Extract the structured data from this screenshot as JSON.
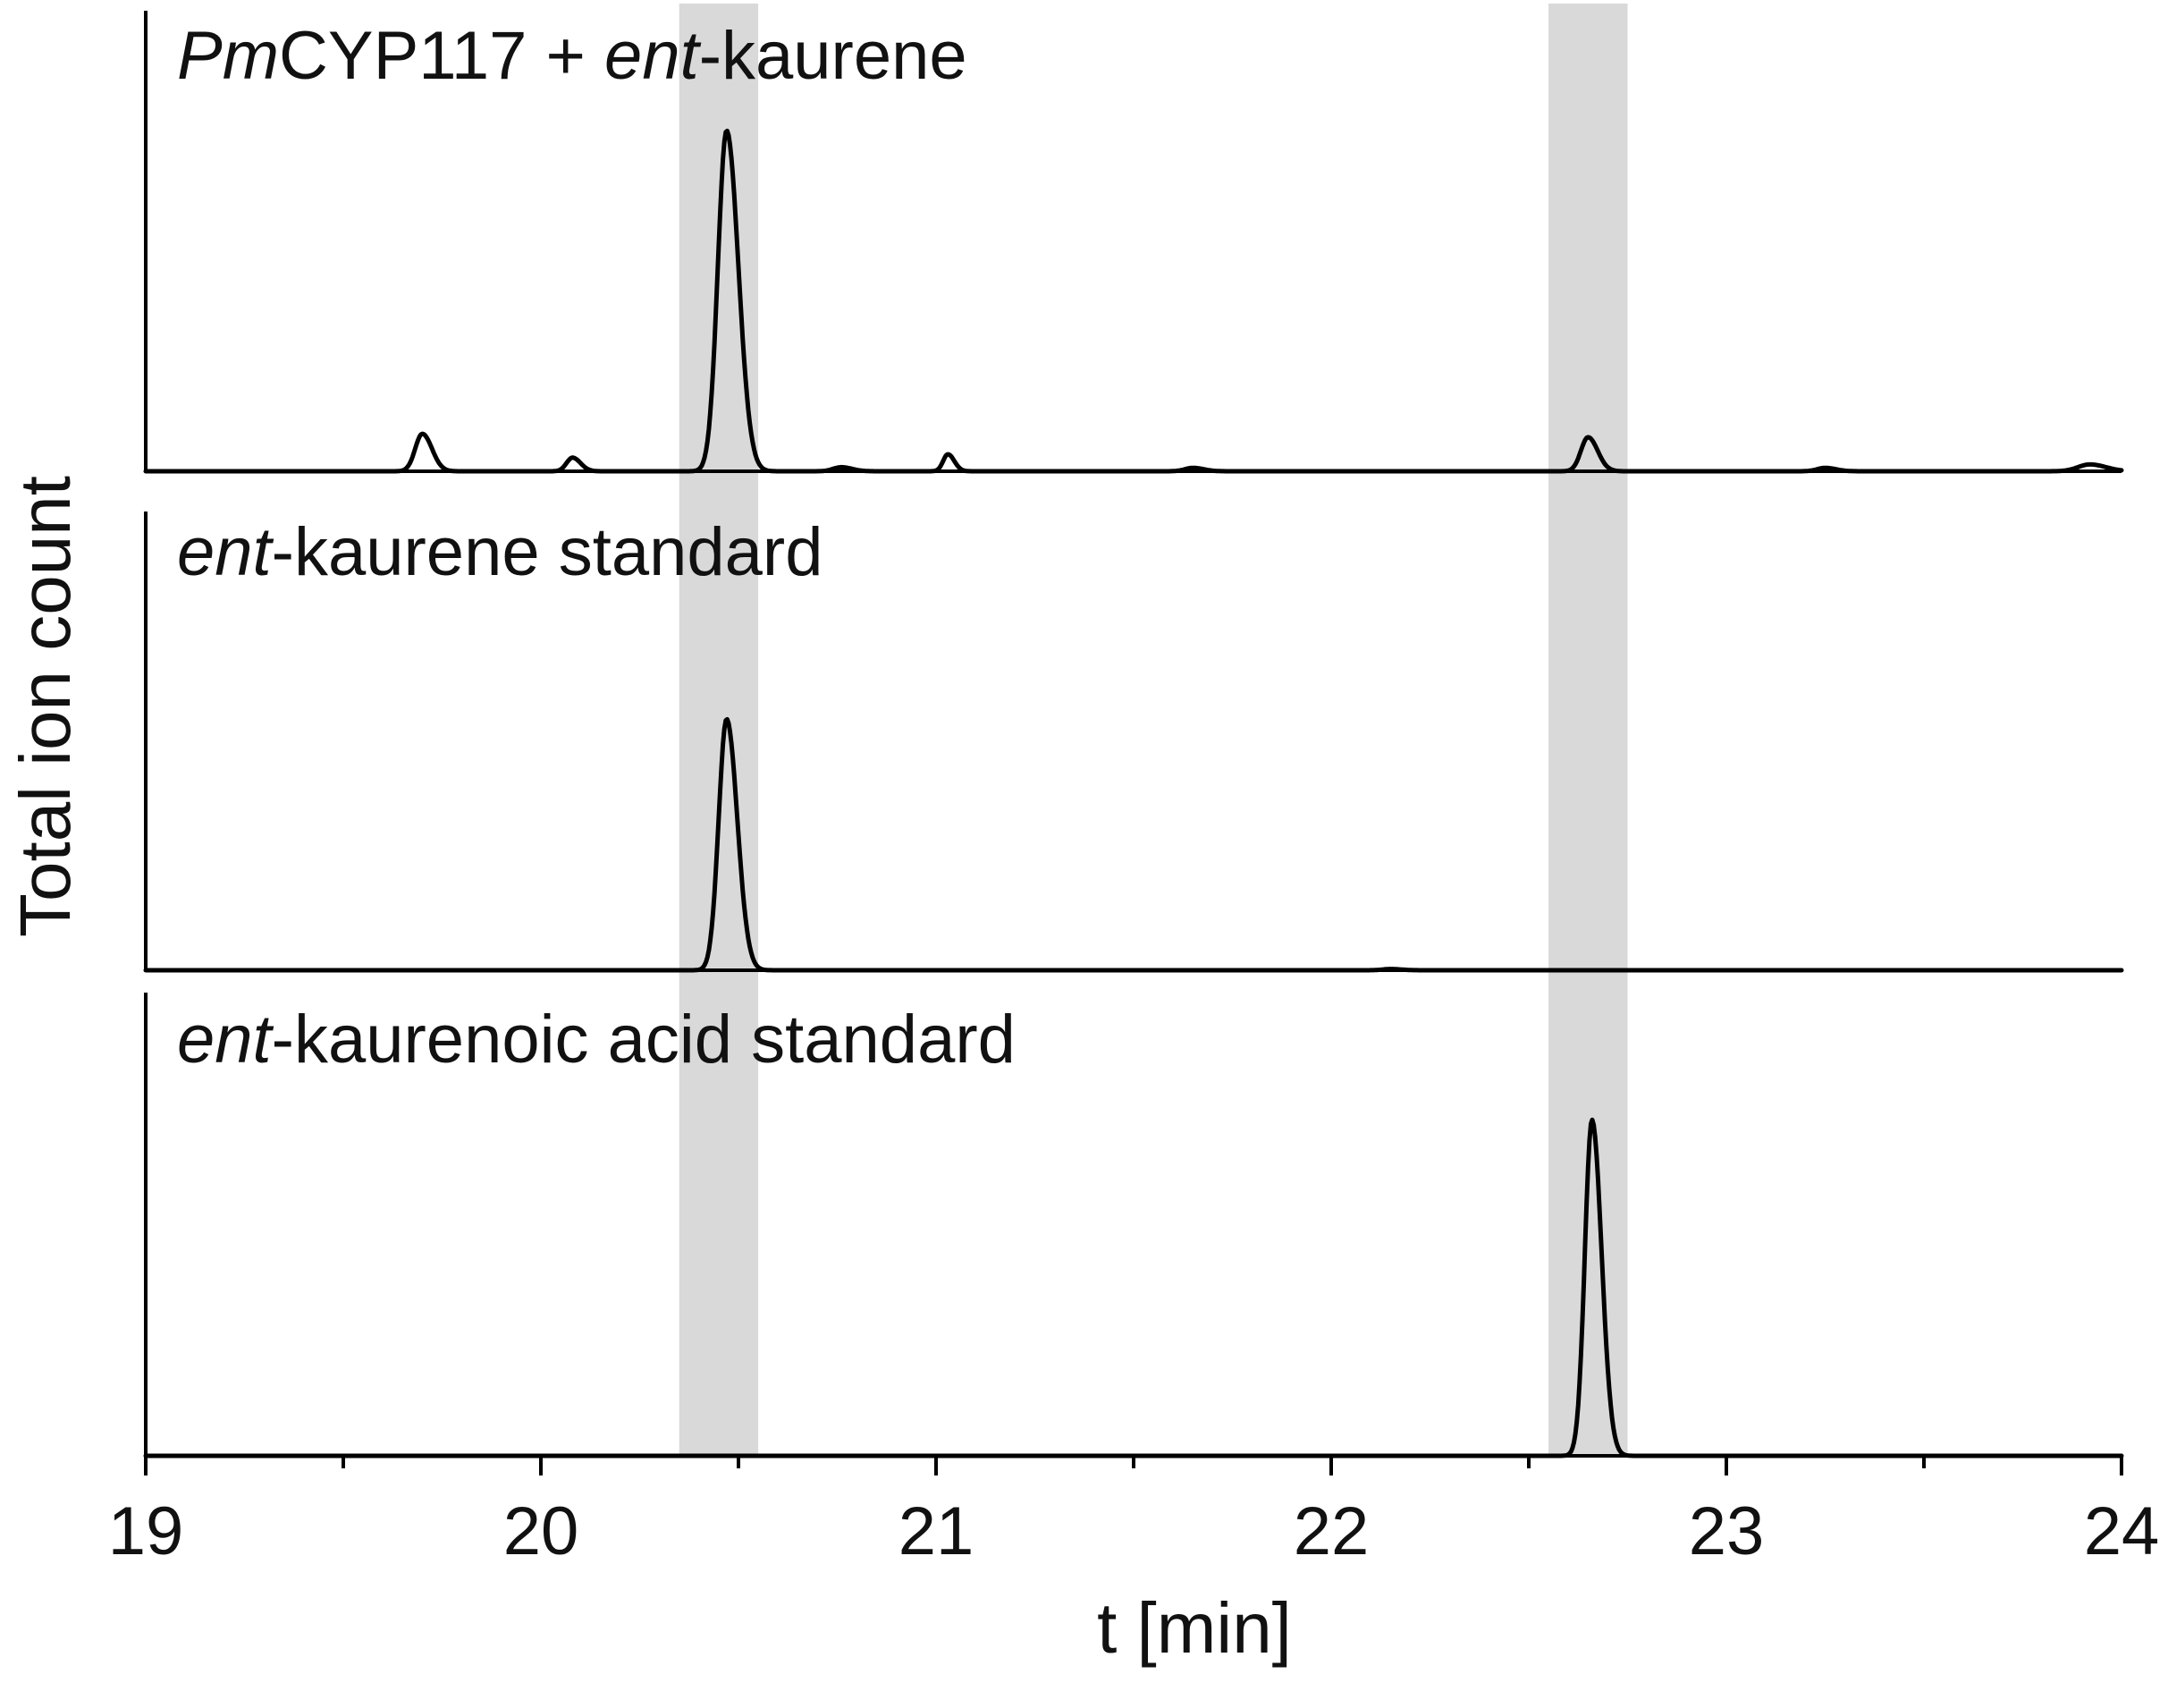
{
  "chart_data": {
    "type": "line",
    "xlabel": "t [min]",
    "ylabel": "Total ion count",
    "xlim": [
      19,
      24
    ],
    "x_major_ticks": [
      19,
      20,
      21,
      22,
      23,
      24
    ],
    "x_minor_ticks": [
      19.5,
      20.5,
      21.5,
      22.5,
      23.5
    ],
    "ylim": [
      0,
      1
    ],
    "grid": false,
    "highlight_bands": [
      {
        "x_start": 20.35,
        "x_end": 20.55,
        "color": "#d9d9d9"
      },
      {
        "x_start": 22.55,
        "x_end": 22.75,
        "color": "#d9d9d9"
      }
    ],
    "panels": [
      {
        "label_parts": [
          {
            "text": "Pm",
            "italic": true
          },
          {
            "text": "CYP117 + ",
            "italic": false
          },
          {
            "text": "ent",
            "italic": true
          },
          {
            "text": "-kaurene",
            "italic": false
          }
        ],
        "peaks": [
          {
            "x": 19.7,
            "height": 0.11,
            "width": 0.018
          },
          {
            "x": 20.08,
            "height": 0.04,
            "width": 0.015
          },
          {
            "x": 20.47,
            "height": 1.0,
            "width": 0.022
          },
          {
            "x": 20.76,
            "height": 0.012,
            "width": 0.02
          },
          {
            "x": 21.03,
            "height": 0.05,
            "width": 0.012
          },
          {
            "x": 21.65,
            "height": 0.01,
            "width": 0.02
          },
          {
            "x": 22.65,
            "height": 0.1,
            "width": 0.018
          },
          {
            "x": 23.25,
            "height": 0.01,
            "width": 0.02
          },
          {
            "x": 23.92,
            "height": 0.02,
            "width": 0.03
          }
        ]
      },
      {
        "label_parts": [
          {
            "text": "ent",
            "italic": true
          },
          {
            "text": "-kaurene standard",
            "italic": false
          }
        ],
        "peaks": [
          {
            "x": 20.47,
            "height": 1.0,
            "width": 0.02
          },
          {
            "x": 22.15,
            "height": 0.005,
            "width": 0.02
          }
        ]
      },
      {
        "label_parts": [
          {
            "text": "ent",
            "italic": true
          },
          {
            "text": "-kaurenoic acid standard",
            "italic": false
          }
        ],
        "peaks": [
          {
            "x": 22.66,
            "height": 1.0,
            "width": 0.018
          }
        ]
      }
    ]
  }
}
